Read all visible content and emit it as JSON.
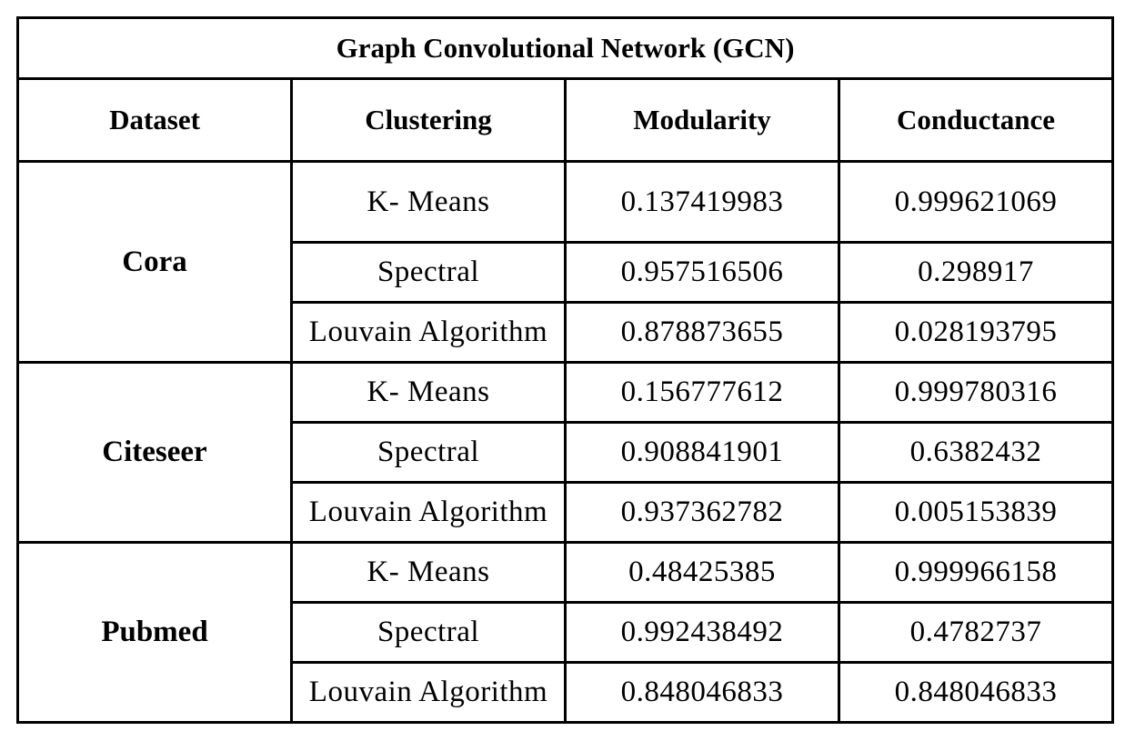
{
  "table": {
    "title": "Graph Convolutional Network (GCN)",
    "headers": [
      "Dataset",
      "Clustering",
      "Modularity",
      "Conductance"
    ],
    "groups": [
      {
        "dataset": "Cora",
        "rows": [
          {
            "clustering": "K- Means",
            "modularity": "0.137419983",
            "conductance": "0.999621069"
          },
          {
            "clustering": "Spectral",
            "modularity": "0.957516506",
            "conductance": "0.298917"
          },
          {
            "clustering": "Louvain Algorithm",
            "modularity": "0.878873655",
            "conductance": "0.028193795"
          }
        ]
      },
      {
        "dataset": "Citeseer",
        "rows": [
          {
            "clustering": "K- Means",
            "modularity": "0.156777612",
            "conductance": "0.999780316"
          },
          {
            "clustering": "Spectral",
            "modularity": "0.908841901",
            "conductance": "0.6382432"
          },
          {
            "clustering": "Louvain Algorithm",
            "modularity": "0.937362782",
            "conductance": "0.005153839"
          }
        ]
      },
      {
        "dataset": "Pubmed",
        "rows": [
          {
            "clustering": "K- Means",
            "modularity": "0.48425385",
            "conductance": "0.999966158"
          },
          {
            "clustering": "Spectral",
            "modularity": "0.992438492",
            "conductance": "0.4782737"
          },
          {
            "clustering": "Louvain Algorithm",
            "modularity": "0.848046833",
            "conductance": "0.848046833"
          }
        ]
      }
    ]
  }
}
